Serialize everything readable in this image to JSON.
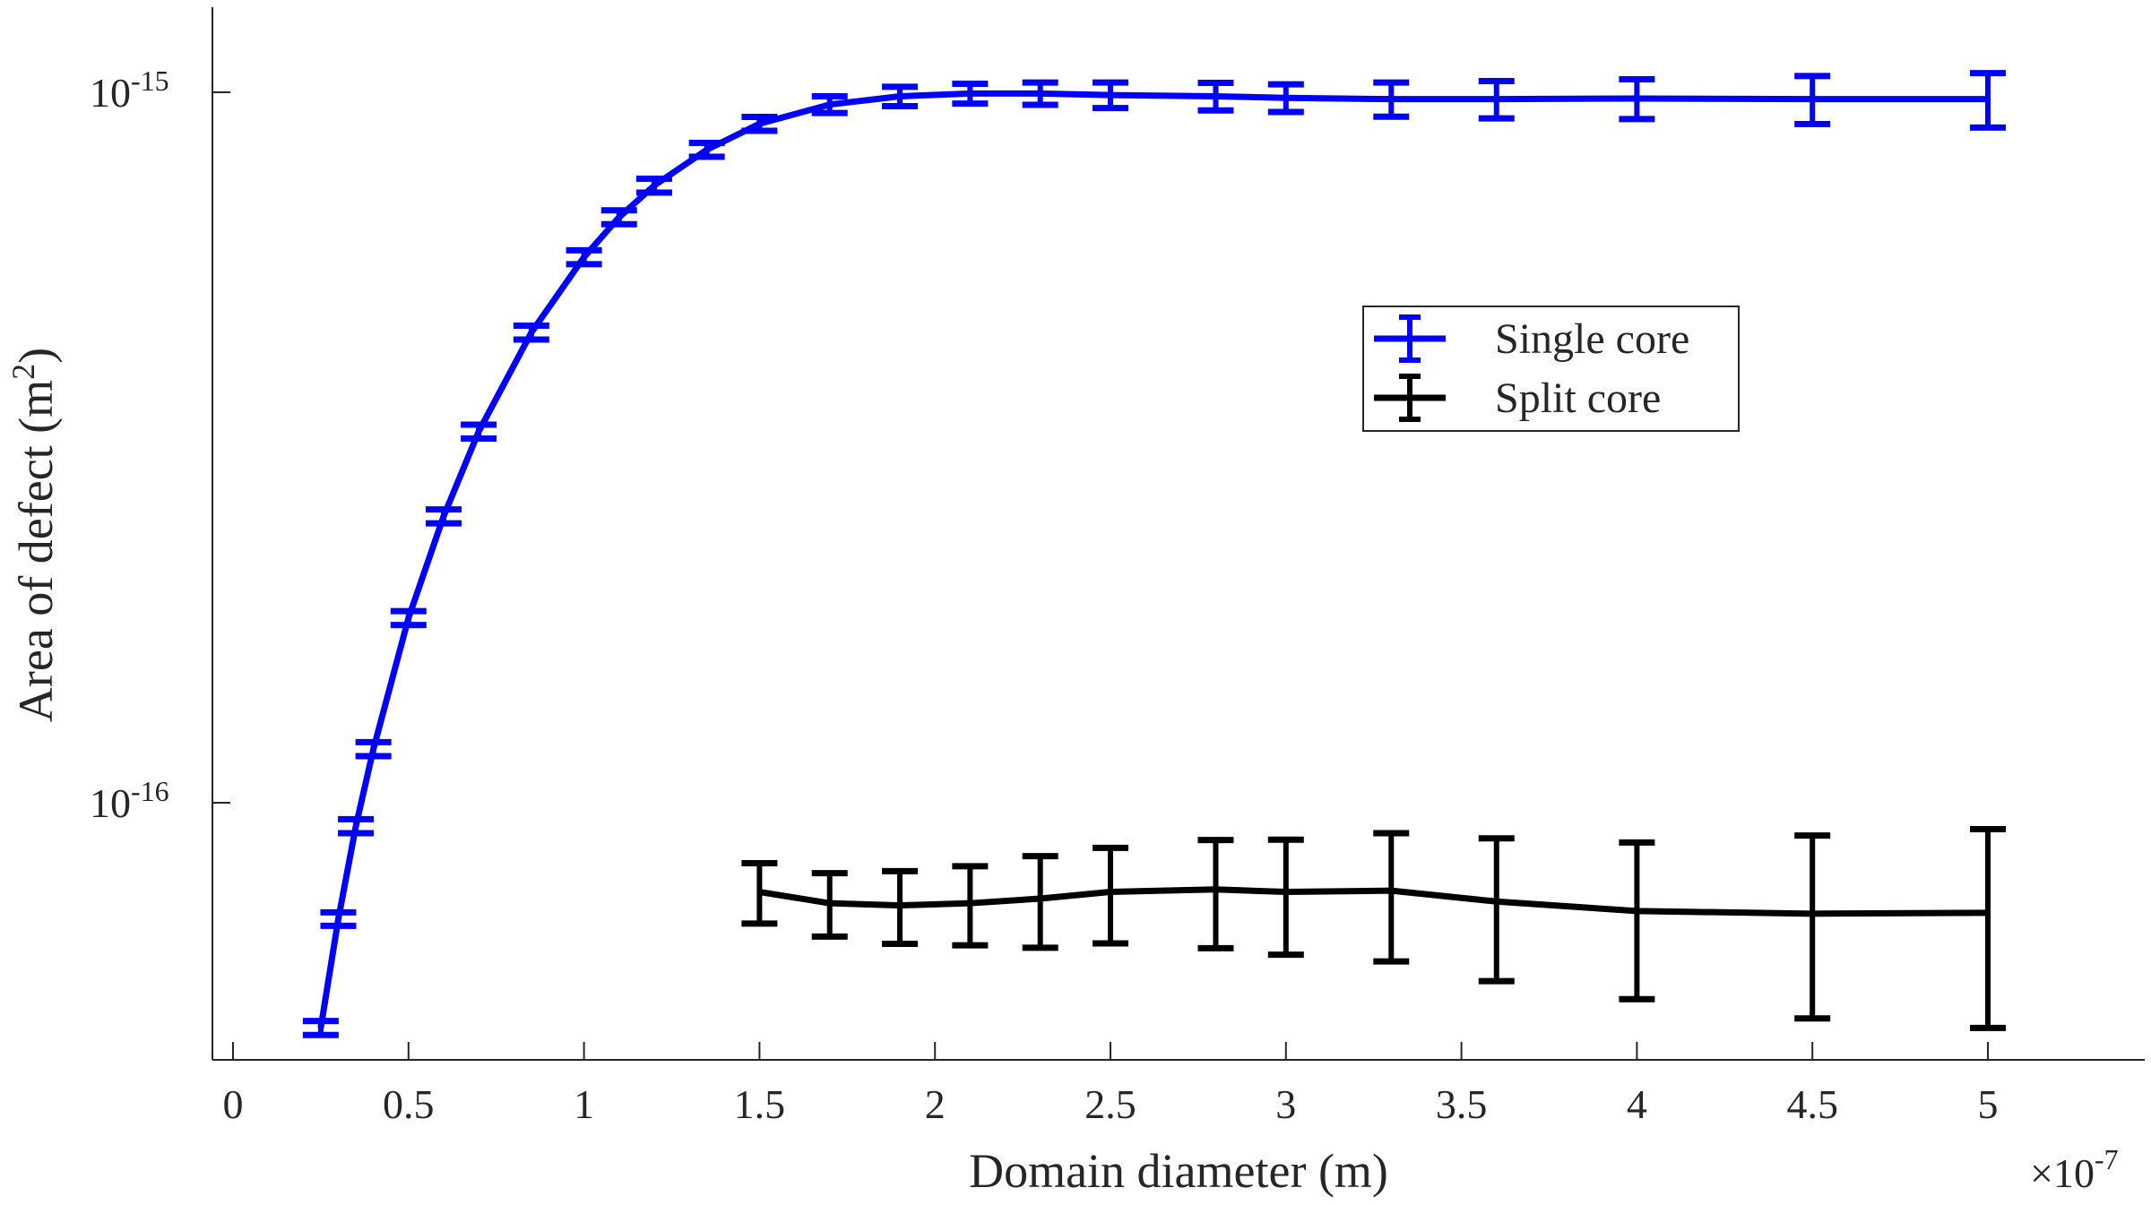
{
  "chart_data": {
    "type": "line",
    "subtype": "errorbar",
    "xlabel": "Domain diameter (m)",
    "ylabel": "Area of defect (m²)",
    "ylabel_base": "Area  of  defect  (m",
    "ylabel_sup": "2",
    "ylabel_end": ")",
    "x_multiplier_label": "×10",
    "x_multiplier_exp": "-7",
    "x_scale": "linear",
    "y_scale": "log",
    "xlim": [
      -0.06,
      5.45
    ],
    "ylim": [
      4.34e-17,
      1.32e-15
    ],
    "x_ticks": [
      0,
      0.5,
      1,
      1.5,
      2,
      2.5,
      3,
      3.5,
      4,
      4.5,
      5
    ],
    "x_tick_labels": [
      "0",
      "0.5",
      "1",
      "1.5",
      "2",
      "2.5",
      "3",
      "3.5",
      "4",
      "4.5",
      "5"
    ],
    "y_ticks": [
      1e-16,
      1e-15
    ],
    "y_tick_labels": [
      {
        "base": "10",
        "exp": "-16"
      },
      {
        "base": "10",
        "exp": "-15"
      }
    ],
    "grid": false,
    "legend_position": "upper-right-center",
    "series": [
      {
        "name": "Single core",
        "color": "#0000ff",
        "x": [
          0.25,
          0.3,
          0.35,
          0.4,
          0.5,
          0.6,
          0.7,
          0.85,
          1.0,
          1.1,
          1.2,
          1.35,
          1.5,
          1.7,
          1.9,
          2.1,
          2.3,
          2.5,
          2.8,
          3.0,
          3.3,
          3.6,
          4.0,
          4.5,
          5.0
        ],
        "y": [
          4.82e-17,
          6.86e-17,
          9.27e-17,
          1.19e-16,
          1.82e-16,
          2.53e-16,
          3.33e-16,
          4.59e-16,
          5.86e-16,
          6.67e-16,
          7.39e-16,
          8.3e-16,
          9.03e-16,
          9.61e-16,
          9.87e-16,
          9.96e-16,
          9.96e-16,
          9.91e-16,
          9.87e-16,
          9.82e-16,
          9.78e-16,
          9.78e-16,
          9.8e-16,
          9.78e-16,
          9.78e-16
        ],
        "err": [
          1.1e-18,
          1.5e-18,
          2.1e-18,
          2.7e-18,
          4.1e-18,
          5.7e-18,
          7.5e-18,
          1.03e-17,
          1.32e-17,
          1.5e-17,
          1.66e-17,
          1.87e-17,
          2.03e-17,
          2.6e-17,
          3.1e-17,
          3.2e-17,
          3.6e-17,
          4.1e-17,
          4.4e-17,
          4.4e-17,
          5.4e-17,
          5.9e-17,
          6.3e-17,
          7.6e-17,
          8.6e-17
        ]
      },
      {
        "name": "Split core",
        "color": "#000000",
        "x": [
          1.5,
          1.7,
          1.9,
          2.1,
          2.3,
          2.5,
          2.8,
          3.0,
          3.3,
          3.6,
          4.0,
          4.5,
          5.0
        ],
        "y": [
          7.49e-17,
          7.22e-17,
          7.17e-17,
          7.22e-17,
          7.33e-17,
          7.49e-17,
          7.55e-17,
          7.49e-17,
          7.52e-17,
          7.26e-17,
          7.04e-17,
          6.98e-17,
          7e-17
        ],
        "err": [
          7.3e-18,
          7.4e-18,
          8.4e-18,
          9.2e-18,
          1.08e-17,
          1.15e-17,
          1.31e-17,
          1.38e-17,
          1.54e-17,
          1.65e-17,
          1.75e-17,
          2.01e-17,
          2.18e-17
        ]
      }
    ]
  }
}
